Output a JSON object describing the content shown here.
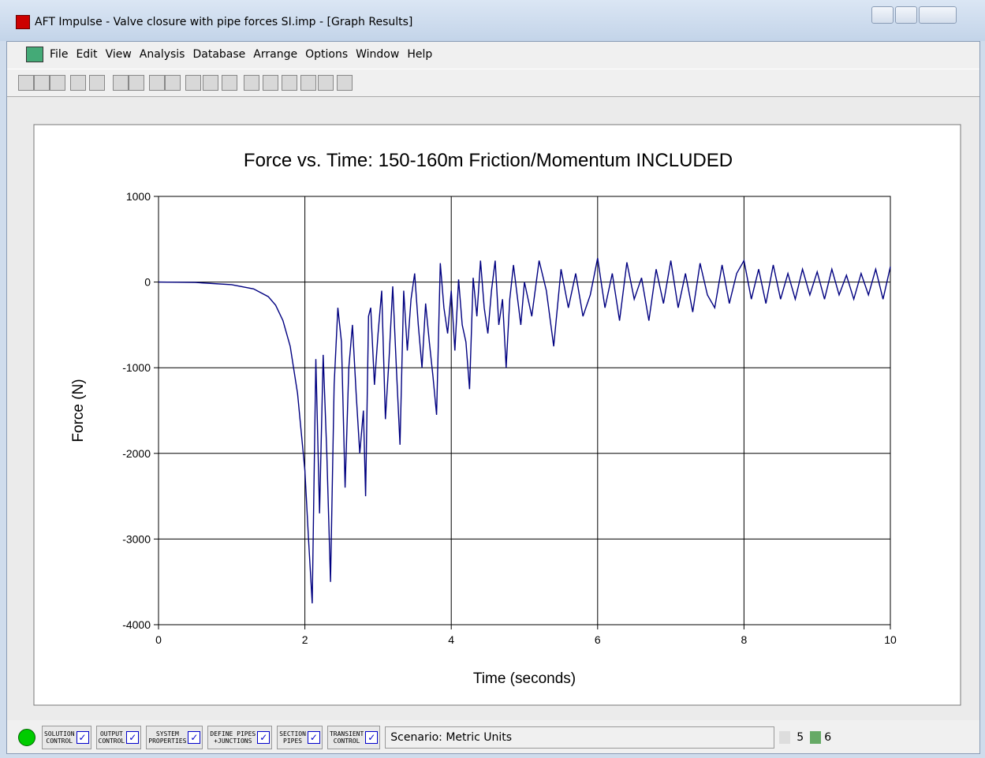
{
  "window": {
    "title": "AFT Impulse - Valve closure with pipe forces SI.imp - [Graph Results]"
  },
  "menu": [
    "File",
    "Edit",
    "View",
    "Analysis",
    "Database",
    "Arrange",
    "Options",
    "Window",
    "Help"
  ],
  "status_bar": {
    "buttons": [
      [
        "SOLUTION",
        "CONTROL"
      ],
      [
        "OUTPUT",
        "CONTROL"
      ],
      [
        "SYSTEM",
        "PROPERTIES"
      ],
      [
        "DEFINE PIPES",
        "+JUNCTIONS"
      ],
      [
        "SECTION",
        "PIPES"
      ],
      [
        "TRANSIENT",
        "CONTROL"
      ]
    ],
    "scenario": "Scenario: Metric Units",
    "count_a": "5",
    "count_b": "6"
  },
  "chart_data": {
    "type": "line",
    "title": "Force vs. Time: 150-160m Friction/Momentum INCLUDED",
    "x_label": "Time (seconds)",
    "y_label": "Force (N)",
    "color": "#000080",
    "grid": true,
    "xlim": [
      0,
      10
    ],
    "ylim": [
      -4000,
      1000
    ],
    "xticks": [
      0,
      2,
      4,
      6,
      8,
      10
    ],
    "yticks": [
      -4000,
      -3000,
      -2000,
      -1000,
      0,
      1000
    ],
    "x": [
      0,
      0.5,
      1,
      1.3,
      1.5,
      1.6,
      1.7,
      1.8,
      1.9,
      2.0,
      2.05,
      2.1,
      2.15,
      2.2,
      2.25,
      2.3,
      2.35,
      2.4,
      2.45,
      2.5,
      2.55,
      2.6,
      2.65,
      2.7,
      2.75,
      2.8,
      2.83,
      2.87,
      2.9,
      2.95,
      3.0,
      3.05,
      3.1,
      3.15,
      3.2,
      3.25,
      3.3,
      3.35,
      3.4,
      3.45,
      3.5,
      3.55,
      3.6,
      3.65,
      3.7,
      3.75,
      3.8,
      3.85,
      3.9,
      3.95,
      4.0,
      4.05,
      4.1,
      4.15,
      4.2,
      4.25,
      4.3,
      4.35,
      4.4,
      4.45,
      4.5,
      4.55,
      4.6,
      4.65,
      4.7,
      4.75,
      4.8,
      4.85,
      4.9,
      4.95,
      5.0,
      5.1,
      5.2,
      5.3,
      5.4,
      5.5,
      5.6,
      5.7,
      5.8,
      5.9,
      6.0,
      6.1,
      6.2,
      6.3,
      6.4,
      6.5,
      6.6,
      6.7,
      6.8,
      6.9,
      7.0,
      7.1,
      7.2,
      7.3,
      7.4,
      7.5,
      7.6,
      7.7,
      7.8,
      7.9,
      8.0,
      8.1,
      8.2,
      8.3,
      8.4,
      8.5,
      8.6,
      8.7,
      8.8,
      8.9,
      9.0,
      9.1,
      9.2,
      9.3,
      9.4,
      9.5,
      9.6,
      9.7,
      9.8,
      9.9,
      10.0
    ],
    "values": [
      0,
      -5,
      -30,
      -80,
      -170,
      -270,
      -450,
      -750,
      -1300,
      -2200,
      -3000,
      -3750,
      -900,
      -2700,
      -850,
      -2000,
      -3500,
      -1200,
      -300,
      -700,
      -2400,
      -1000,
      -500,
      -1300,
      -2000,
      -1500,
      -2500,
      -400,
      -300,
      -1200,
      -600,
      -100,
      -1600,
      -900,
      -50,
      -1000,
      -1900,
      -100,
      -800,
      -200,
      100,
      -500,
      -1000,
      -250,
      -700,
      -1100,
      -1550,
      220,
      -300,
      -600,
      -100,
      -800,
      30,
      -500,
      -700,
      -1250,
      50,
      -400,
      250,
      -300,
      -600,
      -100,
      250,
      -500,
      -200,
      -1000,
      -200,
      200,
      -150,
      -500,
      0,
      -400,
      250,
      -100,
      -750,
      150,
      -300,
      100,
      -400,
      -150,
      280,
      -300,
      100,
      -450,
      230,
      -200,
      50,
      -450,
      150,
      -250,
      250,
      -300,
      100,
      -350,
      220,
      -150,
      -300,
      200,
      -250,
      100,
      250,
      -200,
      150,
      -250,
      200,
      -200,
      100,
      -200,
      150,
      -150,
      120,
      -200,
      150,
      -150,
      80,
      -200,
      100,
      -150,
      150,
      -200,
      180
    ]
  }
}
